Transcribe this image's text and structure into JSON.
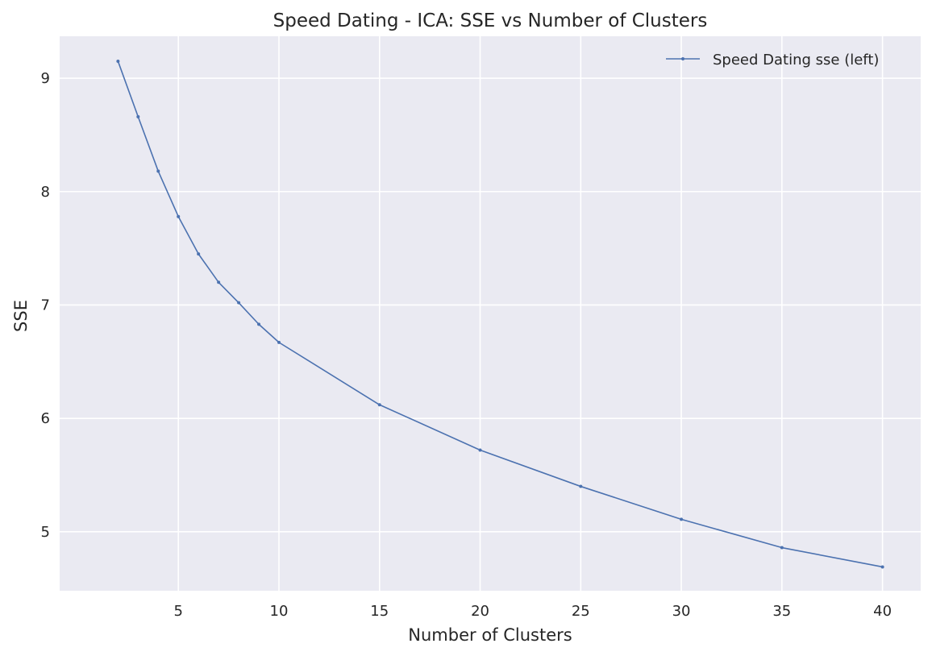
{
  "chart_data": {
    "type": "line",
    "title": "Speed Dating - ICA: SSE vs Number of Clusters",
    "xlabel": "Number of Clusters",
    "ylabel": "SSE",
    "xlim": [
      -0.9,
      41.9
    ],
    "ylim": [
      4.48,
      9.37
    ],
    "xticks": [
      5,
      10,
      15,
      20,
      25,
      30,
      35,
      40
    ],
    "yticks": [
      5,
      6,
      7,
      8,
      9
    ],
    "grid": true,
    "legend_position": "top-right",
    "series": [
      {
        "name": "Speed Dating sse (left)",
        "color": "#4c72b0",
        "marker": "dot",
        "x": [
          2,
          3,
          4,
          5,
          6,
          7,
          8,
          9,
          10,
          15,
          20,
          25,
          30,
          35,
          40
        ],
        "y": [
          9.15,
          8.66,
          8.18,
          7.78,
          7.45,
          7.2,
          7.02,
          6.83,
          6.67,
          6.12,
          5.72,
          5.4,
          5.11,
          4.86,
          4.69
        ]
      }
    ]
  }
}
